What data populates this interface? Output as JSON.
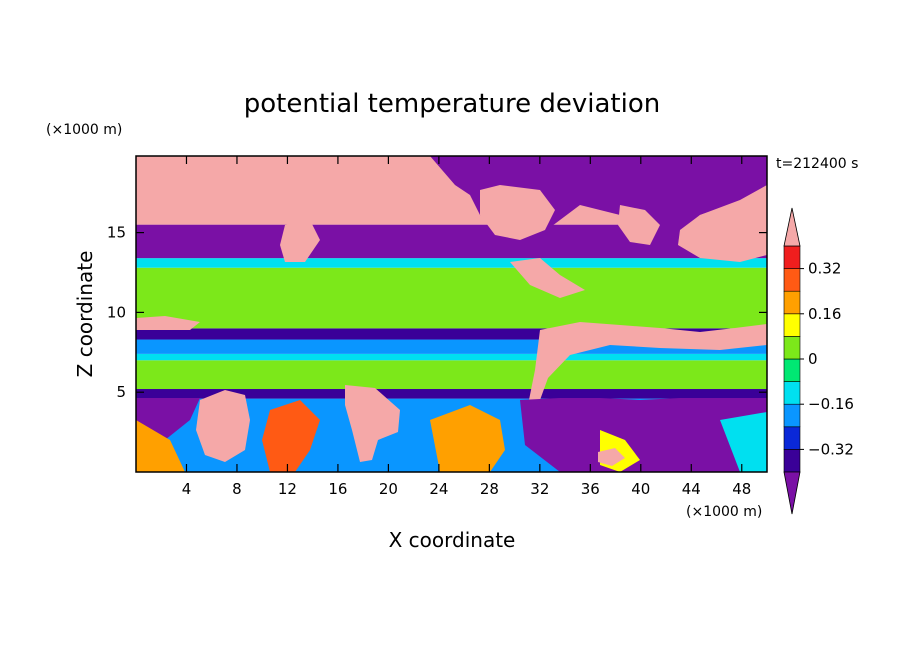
{
  "chart_data": {
    "type": "heatmap",
    "title": "potential temperature deviation",
    "xlabel": "X coordinate",
    "ylabel": "Z coordinate",
    "x_unit": "(×1000 m)",
    "y_unit": "(×1000 m)",
    "time_label": "t=212400 s",
    "xlim": [
      0,
      50
    ],
    "ylim": [
      0,
      19.8
    ],
    "x_ticks": [
      4,
      8,
      12,
      16,
      20,
      24,
      28,
      32,
      36,
      40,
      44,
      48
    ],
    "y_ticks": [
      5,
      10,
      15
    ],
    "colorbar": {
      "levels": [
        -0.4,
        -0.32,
        -0.24,
        -0.16,
        -0.08,
        0,
        0.08,
        0.16,
        0.24,
        0.32,
        0.4
      ],
      "tick_labels": [
        "0.32",
        "0.16",
        "0",
        "−0.16",
        "−0.32"
      ],
      "tick_values": [
        0.32,
        0.16,
        0,
        -0.16,
        -0.32
      ],
      "colors": [
        "#7a10a5",
        "#3a0098",
        "#0a28d8",
        "#0a96ff",
        "#00e0f0",
        "#00e873",
        "#7ce81a",
        "#ffff00",
        "#ffa000",
        "#ff5a14",
        "#f01e1e",
        "#f5a8a8"
      ],
      "extend": "both"
    },
    "layers": [
      {
        "z": [
          0,
          4.6
        ],
        "description_value": -0.2
      },
      {
        "z": [
          4.6,
          5.2
        ],
        "value": -0.34
      },
      {
        "z": [
          5.2,
          7.0
        ],
        "value": 0.02
      },
      {
        "z": [
          7.0,
          7.4
        ],
        "value": -0.1
      },
      {
        "z": [
          7.4,
          8.3
        ],
        "value": -0.2
      },
      {
        "z": [
          8.3,
          9.0
        ],
        "value": -0.36
      },
      {
        "z": [
          9.0,
          12.8
        ],
        "value": 0.06
      },
      {
        "z": [
          12.8,
          13.4
        ],
        "value": -0.1
      },
      {
        "z": [
          13.4,
          15.5
        ],
        "value": -0.44
      },
      {
        "z": [
          15.5,
          19.8
        ],
        "value": 0.44
      }
    ]
  }
}
